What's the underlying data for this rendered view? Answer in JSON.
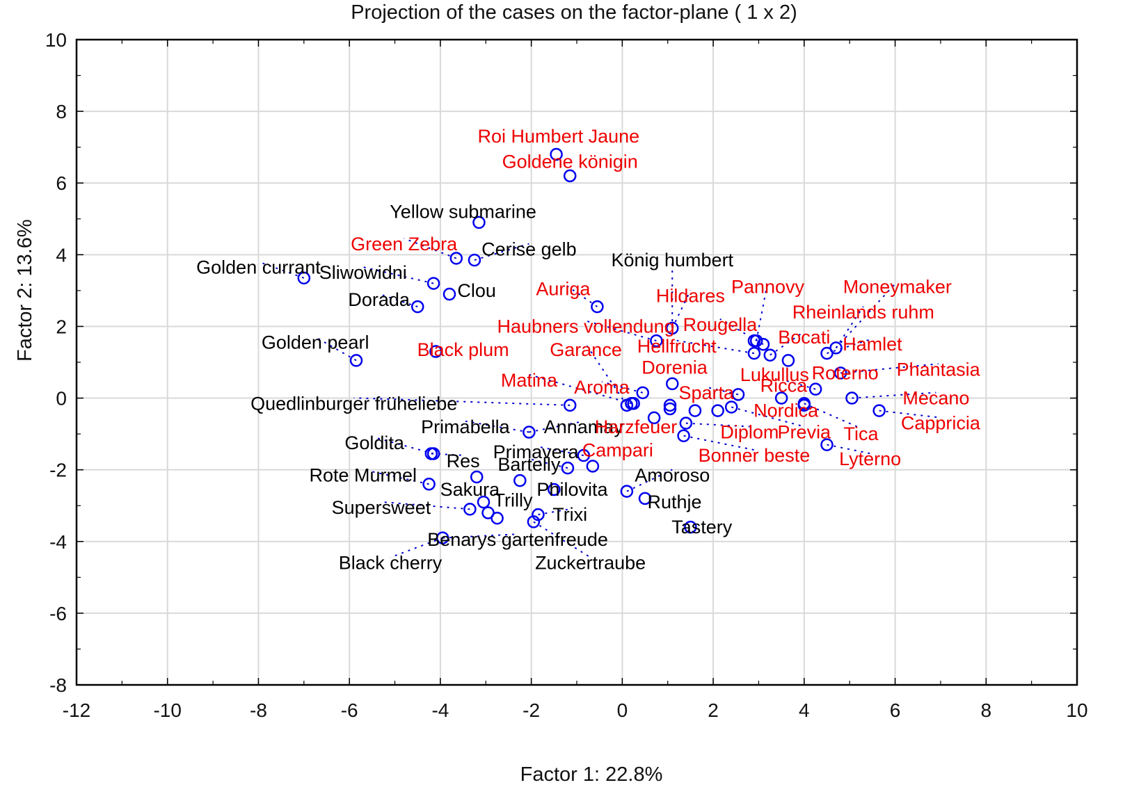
{
  "chart_data": {
    "type": "scatter",
    "title": "Projection of the cases on the factor-plane (  1 x   2)",
    "xlabel": "Factor 1: 22.8%",
    "ylabel": "Factor 2: 13.6%",
    "xlim": [
      -12,
      10
    ],
    "ylim": [
      -8,
      10
    ],
    "xticks": [
      -12,
      -10,
      -8,
      -6,
      -4,
      -2,
      0,
      2,
      4,
      6,
      8,
      10
    ],
    "yticks": [
      -8,
      -6,
      -4,
      -2,
      0,
      2,
      4,
      6,
      8,
      10
    ],
    "grid": true,
    "legend": null,
    "colors": {
      "marker": "#0000ee",
      "label_group_a": "#000000",
      "label_group_b": "#ee0000",
      "leader": "#0000cc",
      "grid": "#d9d9d9",
      "axis": "#000000"
    },
    "points": [
      {
        "name": "Roi Humbert Jaune",
        "x": -1.45,
        "y": 6.8,
        "group": "b",
        "lx": -1.4,
        "ly": 7.3,
        "anchor": "middle"
      },
      {
        "name": "Goldene königin",
        "x": -1.15,
        "y": 6.2,
        "group": "b",
        "lx": -1.15,
        "ly": 6.6,
        "anchor": "middle"
      },
      {
        "name": "Yellow submarine",
        "x": -3.15,
        "y": 4.9,
        "group": "a",
        "lx": -3.5,
        "ly": 5.2,
        "anchor": "middle"
      },
      {
        "name": "Green Zebra",
        "x": -3.65,
        "y": 3.9,
        "group": "b",
        "lx": -4.8,
        "ly": 4.3,
        "anchor": "middle"
      },
      {
        "name": "Cerise gelb",
        "x": -3.25,
        "y": 3.85,
        "group": "a",
        "lx": -2.05,
        "ly": 4.15,
        "anchor": "middle"
      },
      {
        "name": "Golden currant",
        "x": -7.0,
        "y": 3.35,
        "group": "a",
        "lx": -8.0,
        "ly": 3.65,
        "anchor": "middle"
      },
      {
        "name": "Sliwowidni",
        "x": -4.15,
        "y": 3.2,
        "group": "a",
        "lx": -5.7,
        "ly": 3.5,
        "anchor": "middle"
      },
      {
        "name": "Clou",
        "x": -3.8,
        "y": 2.9,
        "group": "a",
        "lx": -3.2,
        "ly": 3.0,
        "anchor": "middle"
      },
      {
        "name": "Dorada",
        "x": -4.5,
        "y": 2.55,
        "group": "a",
        "lx": -5.35,
        "ly": 2.75,
        "anchor": "middle"
      },
      {
        "name": "Golden pearl",
        "x": -5.85,
        "y": 1.05,
        "group": "a",
        "lx": -6.75,
        "ly": 1.55,
        "anchor": "middle"
      },
      {
        "name": "Auriga",
        "x": -0.55,
        "y": 2.55,
        "group": "b",
        "lx": -1.3,
        "ly": 3.05,
        "anchor": "middle"
      },
      {
        "name": "König humbert",
        "x": 1.1,
        "y": 1.95,
        "group": "a",
        "lx": 1.1,
        "ly": 3.85,
        "anchor": "middle"
      },
      {
        "name": "Hildares",
        "x": 1.1,
        "y": 1.95,
        "group": "b",
        "lx": 1.5,
        "ly": 2.85,
        "anchor": "middle"
      },
      {
        "name": "Pannovy",
        "x": 2.95,
        "y": 1.6,
        "group": "b",
        "lx": 3.2,
        "ly": 3.1,
        "anchor": "middle"
      },
      {
        "name": "Moneymaker",
        "x": 4.7,
        "y": 1.4,
        "group": "b",
        "lx": 6.05,
        "ly": 3.1,
        "anchor": "middle"
      },
      {
        "name": "Rheinlands ruhm",
        "x": 4.7,
        "y": 1.4,
        "group": "b",
        "lx": 5.3,
        "ly": 2.4,
        "anchor": "middle"
      },
      {
        "name": "Rougella",
        "x": 3.1,
        "y": 1.5,
        "group": "b",
        "lx": 2.15,
        "ly": 2.05,
        "anchor": "middle"
      },
      {
        "name": "Bocati",
        "x": 3.25,
        "y": 1.2,
        "group": "b",
        "lx": 4.0,
        "ly": 1.7,
        "anchor": "middle"
      },
      {
        "name": "Haubners vollendung",
        "x": 0.75,
        "y": 1.6,
        "group": "b",
        "lx": -0.8,
        "ly": 2.0,
        "anchor": "middle"
      },
      {
        "name": "Hellfrucht",
        "x": 2.9,
        "y": 1.25,
        "group": "b",
        "lx": 1.2,
        "ly": 1.45,
        "anchor": "middle"
      },
      {
        "name": "Hamlet",
        "x": 4.5,
        "y": 1.25,
        "group": "b",
        "lx": 5.5,
        "ly": 1.5,
        "anchor": "middle"
      },
      {
        "name": "Black plum",
        "x": -4.1,
        "y": 1.3,
        "group": "b",
        "lx": -3.5,
        "ly": 1.35,
        "anchor": "middle"
      },
      {
        "name": "Garance",
        "x": 0.1,
        "y": -0.2,
        "group": "b",
        "lx": -0.8,
        "ly": 1.35,
        "anchor": "middle"
      },
      {
        "name": "Dorenia",
        "x": 1.1,
        "y": 0.4,
        "group": "b",
        "lx": 1.15,
        "ly": 0.85,
        "anchor": "middle"
      },
      {
        "name": "Lukullus",
        "x": 3.65,
        "y": 1.05,
        "group": "b",
        "lx": 3.35,
        "ly": 0.65,
        "anchor": "middle"
      },
      {
        "name": "Roterno",
        "x": 4.8,
        "y": 0.7,
        "group": "b",
        "lx": 4.9,
        "ly": 0.7,
        "anchor": "middle"
      },
      {
        "name": "Phantasia",
        "x": 4.8,
        "y": 0.7,
        "group": "b",
        "lx": 6.95,
        "ly": 0.8,
        "anchor": "middle"
      },
      {
        "name": "Matina",
        "x": 0.2,
        "y": -0.15,
        "group": "b",
        "lx": -2.05,
        "ly": 0.5,
        "anchor": "middle"
      },
      {
        "name": "Aroma",
        "x": 0.45,
        "y": 0.15,
        "group": "b",
        "lx": -0.45,
        "ly": 0.3,
        "anchor": "middle"
      },
      {
        "name": "Sparta",
        "x": 2.55,
        "y": 0.1,
        "group": "b",
        "lx": 1.85,
        "ly": 0.15,
        "anchor": "middle"
      },
      {
        "name": "Ricca",
        "x": 4.25,
        "y": 0.25,
        "group": "b",
        "lx": 3.55,
        "ly": 0.35,
        "anchor": "middle"
      },
      {
        "name": "Mecano",
        "x": 5.05,
        "y": 0.0,
        "group": "b",
        "lx": 6.9,
        "ly": 0.0,
        "anchor": "middle"
      },
      {
        "name": "Quedlinburger früheliebe",
        "x": -1.15,
        "y": -0.2,
        "group": "a",
        "lx": -5.9,
        "ly": -0.15,
        "anchor": "middle"
      },
      {
        "name": "Nordica",
        "x": 4.0,
        "y": -0.2,
        "group": "b",
        "lx": 3.6,
        "ly": -0.35,
        "anchor": "middle"
      },
      {
        "name": "Cappricia",
        "x": 5.65,
        "y": -0.35,
        "group": "b",
        "lx": 7.0,
        "ly": -0.7,
        "anchor": "middle"
      },
      {
        "name": "Primabella",
        "x": -2.05,
        "y": -0.95,
        "group": "a",
        "lx": -3.45,
        "ly": -0.8,
        "anchor": "middle"
      },
      {
        "name": "Annamay",
        "x": -2.05,
        "y": -0.95,
        "group": "a",
        "lx": -0.85,
        "ly": -0.8,
        "anchor": "middle"
      },
      {
        "name": "Harzfeuer",
        "x": 0.7,
        "y": -0.55,
        "group": "b",
        "lx": 0.3,
        "ly": -0.8,
        "anchor": "middle"
      },
      {
        "name": "Diplom",
        "x": 1.4,
        "y": -0.7,
        "group": "b",
        "lx": 2.8,
        "ly": -0.95,
        "anchor": "middle"
      },
      {
        "name": "Previa",
        "x": 2.4,
        "y": -0.25,
        "group": "b",
        "lx": 4.0,
        "ly": -0.95,
        "anchor": "middle"
      },
      {
        "name": "Tica",
        "x": 4.0,
        "y": -0.15,
        "group": "b",
        "lx": 5.25,
        "ly": -1.0,
        "anchor": "middle"
      },
      {
        "name": "Goldita",
        "x": -4.15,
        "y": -1.55,
        "group": "a",
        "lx": -5.45,
        "ly": -1.25,
        "anchor": "middle"
      },
      {
        "name": "Primavera",
        "x": -0.85,
        "y": -1.6,
        "group": "a",
        "lx": -1.9,
        "ly": -1.5,
        "anchor": "middle"
      },
      {
        "name": "Campari",
        "x": -0.65,
        "y": -1.9,
        "group": "b",
        "lx": -0.1,
        "ly": -1.45,
        "anchor": "middle"
      },
      {
        "name": "Bonner beste",
        "x": 1.35,
        "y": -1.05,
        "group": "b",
        "lx": 2.9,
        "ly": -1.6,
        "anchor": "middle"
      },
      {
        "name": "Lyterno",
        "x": 4.5,
        "y": -1.3,
        "group": "b",
        "lx": 5.45,
        "ly": -1.7,
        "anchor": "middle"
      },
      {
        "name": "Res",
        "x": -4.2,
        "y": -1.55,
        "group": "a",
        "lx": -3.5,
        "ly": -1.75,
        "anchor": "middle"
      },
      {
        "name": "Bartelly",
        "x": -1.2,
        "y": -1.95,
        "group": "a",
        "lx": -2.05,
        "ly": -1.85,
        "anchor": "middle"
      },
      {
        "name": "Rote Murmel",
        "x": -4.25,
        "y": -2.4,
        "group": "a",
        "lx": -5.7,
        "ly": -2.15,
        "anchor": "middle"
      },
      {
        "name": "Sakura",
        "x": -3.2,
        "y": -2.2,
        "group": "a",
        "lx": -3.35,
        "ly": -2.55,
        "anchor": "middle"
      },
      {
        "name": "Philovita",
        "x": -1.5,
        "y": -2.55,
        "group": "a",
        "lx": -1.1,
        "ly": -2.55,
        "anchor": "middle"
      },
      {
        "name": "Amoroso",
        "x": 0.1,
        "y": -2.6,
        "group": "a",
        "lx": 1.1,
        "ly": -2.15,
        "anchor": "middle"
      },
      {
        "name": "Ruthje",
        "x": 0.5,
        "y": -2.8,
        "group": "a",
        "lx": 1.15,
        "ly": -2.9,
        "anchor": "middle"
      },
      {
        "name": "Trilly",
        "x": -3.05,
        "y": -2.9,
        "group": "a",
        "lx": -2.4,
        "ly": -2.85,
        "anchor": "middle"
      },
      {
        "name": "Supersweet",
        "x": -3.35,
        "y": -3.1,
        "group": "a",
        "lx": -5.3,
        "ly": -3.05,
        "anchor": "middle"
      },
      {
        "name": "Trixi",
        "x": -1.85,
        "y": -3.25,
        "group": "a",
        "lx": -1.15,
        "ly": -3.25,
        "anchor": "middle"
      },
      {
        "name": "Tastery",
        "x": 1.5,
        "y": -3.6,
        "group": "a",
        "lx": 1.75,
        "ly": -3.6,
        "anchor": "middle"
      },
      {
        "name": "Benarys gartenfreude",
        "x": -3.95,
        "y": -3.9,
        "group": "a",
        "lx": -2.3,
        "ly": -3.95,
        "anchor": "middle"
      },
      {
        "name": "Black cherry",
        "x": -3.95,
        "y": -3.9,
        "group": "a",
        "lx": -5.1,
        "ly": -4.6,
        "anchor": "middle"
      },
      {
        "name": "Zuckertraube",
        "x": -1.95,
        "y": -3.45,
        "group": "a",
        "lx": -0.7,
        "ly": -4.6,
        "anchor": "middle"
      }
    ],
    "extra_markers": [
      {
        "x": -2.25,
        "y": -2.3
      },
      {
        "x": -2.95,
        "y": -3.2
      },
      {
        "x": -2.75,
        "y": -3.35
      },
      {
        "x": 0.25,
        "y": -0.15
      },
      {
        "x": 1.05,
        "y": -0.2
      },
      {
        "x": 1.05,
        "y": -0.3
      },
      {
        "x": 1.6,
        "y": -0.35
      },
      {
        "x": 2.1,
        "y": -0.35
      },
      {
        "x": 3.5,
        "y": 0.0
      },
      {
        "x": 2.9,
        "y": 1.6
      }
    ]
  }
}
